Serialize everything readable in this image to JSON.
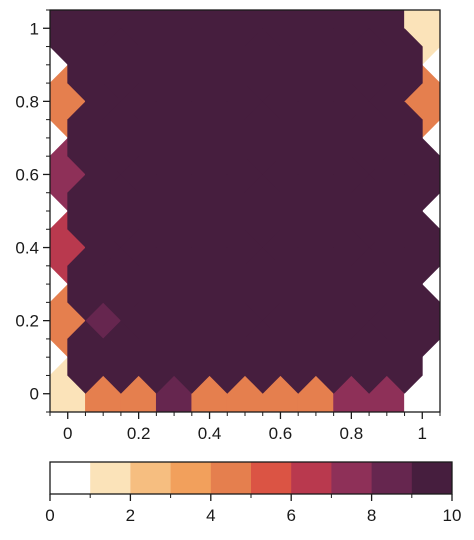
{
  "chart_data": {
    "type": "heatmap",
    "subtype": "hexbin",
    "title": "",
    "xlabel": "",
    "ylabel": "",
    "xlim": [
      -0.05,
      1.05
    ],
    "ylim": [
      -0.05,
      1.05
    ],
    "x_ticks": [
      "0",
      "0.2",
      "0.4",
      "0.6",
      "0.8",
      "1"
    ],
    "y_ticks": [
      "0",
      "0.2",
      "0.4",
      "0.6",
      "0.8",
      "1"
    ],
    "grid": true,
    "colorbar": {
      "orientation": "horizontal",
      "placement": "bottom",
      "range": [
        0,
        10
      ],
      "ticks": [
        "0",
        "2",
        "4",
        "6",
        "8",
        "10"
      ],
      "colors": [
        "#ffffff",
        "#fbe3b9",
        "#f6be80",
        "#f2a05c",
        "#e57f4e",
        "#db5444",
        "#b9394e",
        "#8e3058",
        "#66264f",
        "#461e3e"
      ]
    },
    "gridsize": 10,
    "rows_even": [
      [
        1,
        4,
        4,
        8,
        4,
        4,
        4,
        4,
        7,
        7,
        0
      ],
      [
        4,
        8,
        10,
        10,
        10,
        10,
        10,
        10,
        10,
        10,
        10
      ],
      [
        6,
        10,
        10,
        10,
        10,
        10,
        10,
        10,
        10,
        10,
        10
      ],
      [
        7,
        10,
        10,
        10,
        10,
        10,
        10,
        10,
        10,
        10,
        10
      ],
      [
        4,
        10,
        10,
        10,
        10,
        10,
        10,
        10,
        10,
        10,
        4
      ],
      [
        10,
        10,
        10,
        10,
        10,
        10,
        10,
        10,
        10,
        10,
        1
      ]
    ],
    "rows_odd": [
      [
        10,
        10,
        10,
        10,
        10,
        10,
        10,
        10,
        10,
        10
      ],
      [
        10,
        10,
        10,
        10,
        10,
        10,
        10,
        10,
        10,
        10
      ],
      [
        10,
        10,
        10,
        10,
        10,
        10,
        10,
        10,
        10,
        10
      ],
      [
        10,
        10,
        10,
        10,
        10,
        10,
        10,
        10,
        10,
        10
      ],
      [
        10,
        10,
        10,
        10,
        10,
        10,
        10,
        10,
        10,
        10
      ]
    ]
  }
}
